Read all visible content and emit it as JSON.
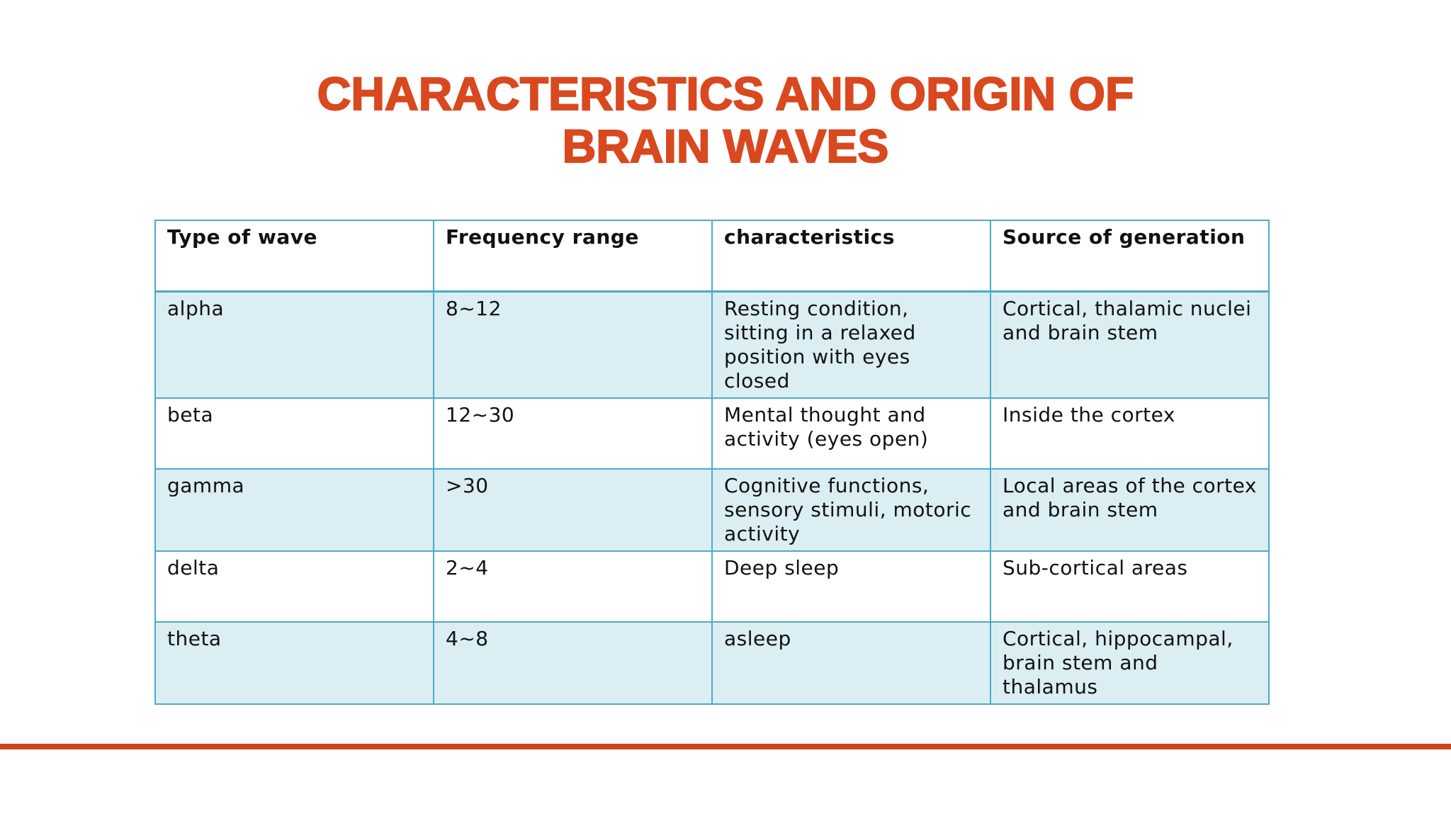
{
  "title": {
    "line1": "CHARACTERISTICS AND ORIGIN OF",
    "line2": "BRAIN WAVES"
  },
  "table": {
    "headers": [
      "Type of wave",
      "Frequency range",
      "characteristics",
      "Source of generation"
    ],
    "rows": [
      [
        "alpha",
        "8~12",
        "Resting condition, sitting in a relaxed position with eyes closed",
        "Cortical, thalamic nuclei and brain stem"
      ],
      [
        "beta",
        "12~30",
        "Mental thought and activity (eyes open)",
        "Inside the cortex"
      ],
      [
        "gamma",
        ">30",
        "Cognitive functions, sensory stimuli, motoric activity",
        "Local areas of the cortex and brain stem"
      ],
      [
        "delta",
        "2~4",
        "Deep sleep",
        "Sub-cortical areas"
      ],
      [
        "theta",
        "4~8",
        "asleep",
        "Cortical, hippocampal, brain stem and thalamus"
      ]
    ]
  },
  "colors": {
    "title": "#D9481E",
    "table_border": "#4BACC6",
    "band_fill": "#DAEEF3",
    "footer_rule": "#C9431B"
  }
}
